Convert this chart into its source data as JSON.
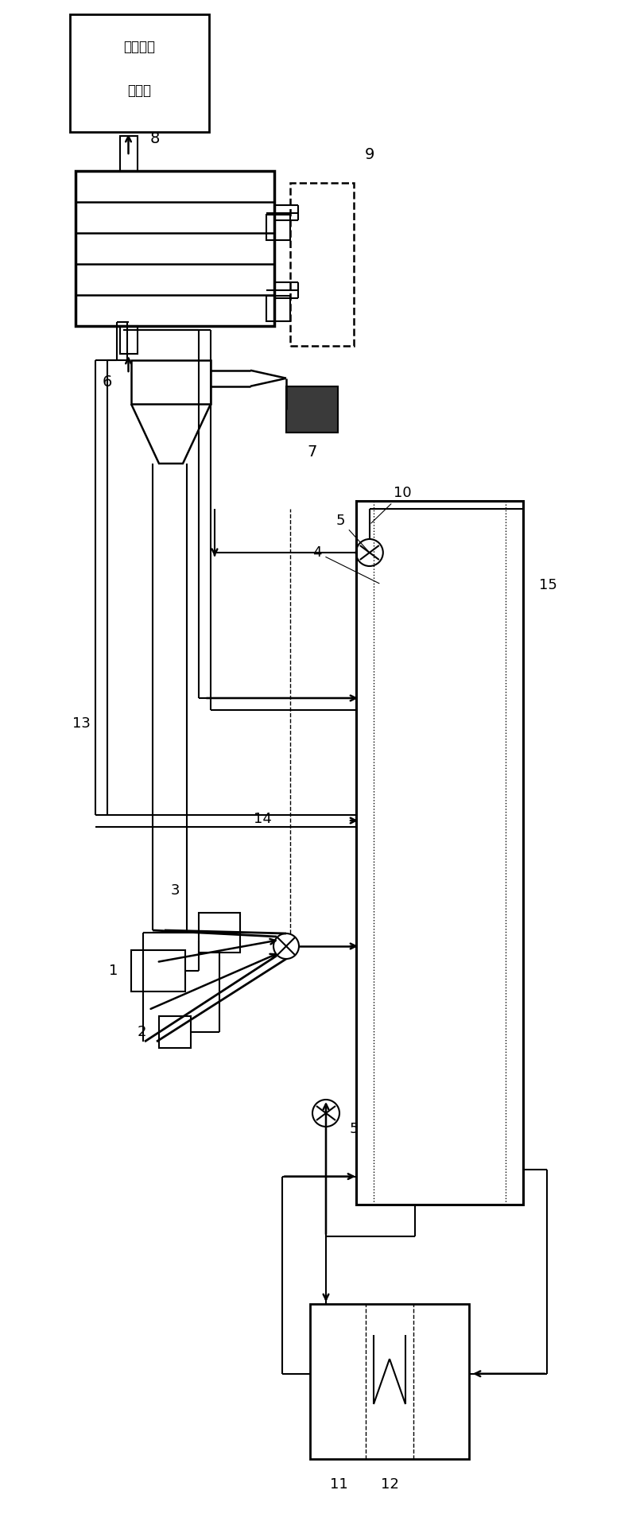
{
  "bg_color": "#ffffff",
  "line_color": "#000000",
  "fig_width": 8.0,
  "fig_height": 19.18
}
